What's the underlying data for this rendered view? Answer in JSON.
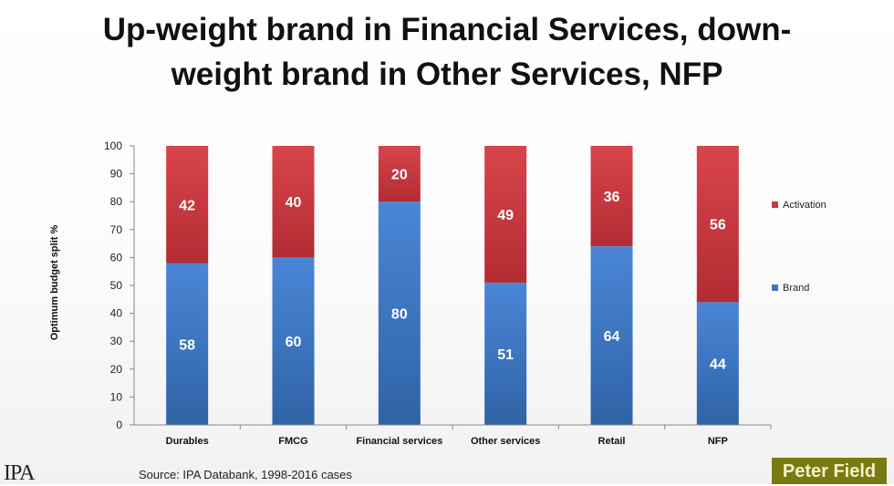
{
  "title_line1": "Up-weight brand in Financial Services, down-",
  "title_line2": "weight brand in Other Services, NFP",
  "source": "Source: IPA Databank, 1998-2016 cases",
  "logo_text": "IPA",
  "badge_text": "Peter Field",
  "colors": {
    "brand": "#3d77c4",
    "activation": "#c9383d"
  },
  "chart_data": {
    "type": "bar",
    "stacked": true,
    "categories": [
      "Durables",
      "FMCG",
      "Financial services",
      "Other services",
      "Retail",
      "NFP"
    ],
    "series": [
      {
        "name": "Brand",
        "values": [
          58,
          60,
          80,
          51,
          64,
          44
        ]
      },
      {
        "name": "Activation",
        "values": [
          42,
          40,
          20,
          49,
          36,
          56
        ]
      }
    ],
    "ylabel": "Optimum budget split %",
    "ylim": [
      0,
      100
    ],
    "yticks": [
      0,
      10,
      20,
      30,
      40,
      50,
      60,
      70,
      80,
      90,
      100
    ],
    "legend": "right",
    "grid": false,
    "data_labels": true
  }
}
